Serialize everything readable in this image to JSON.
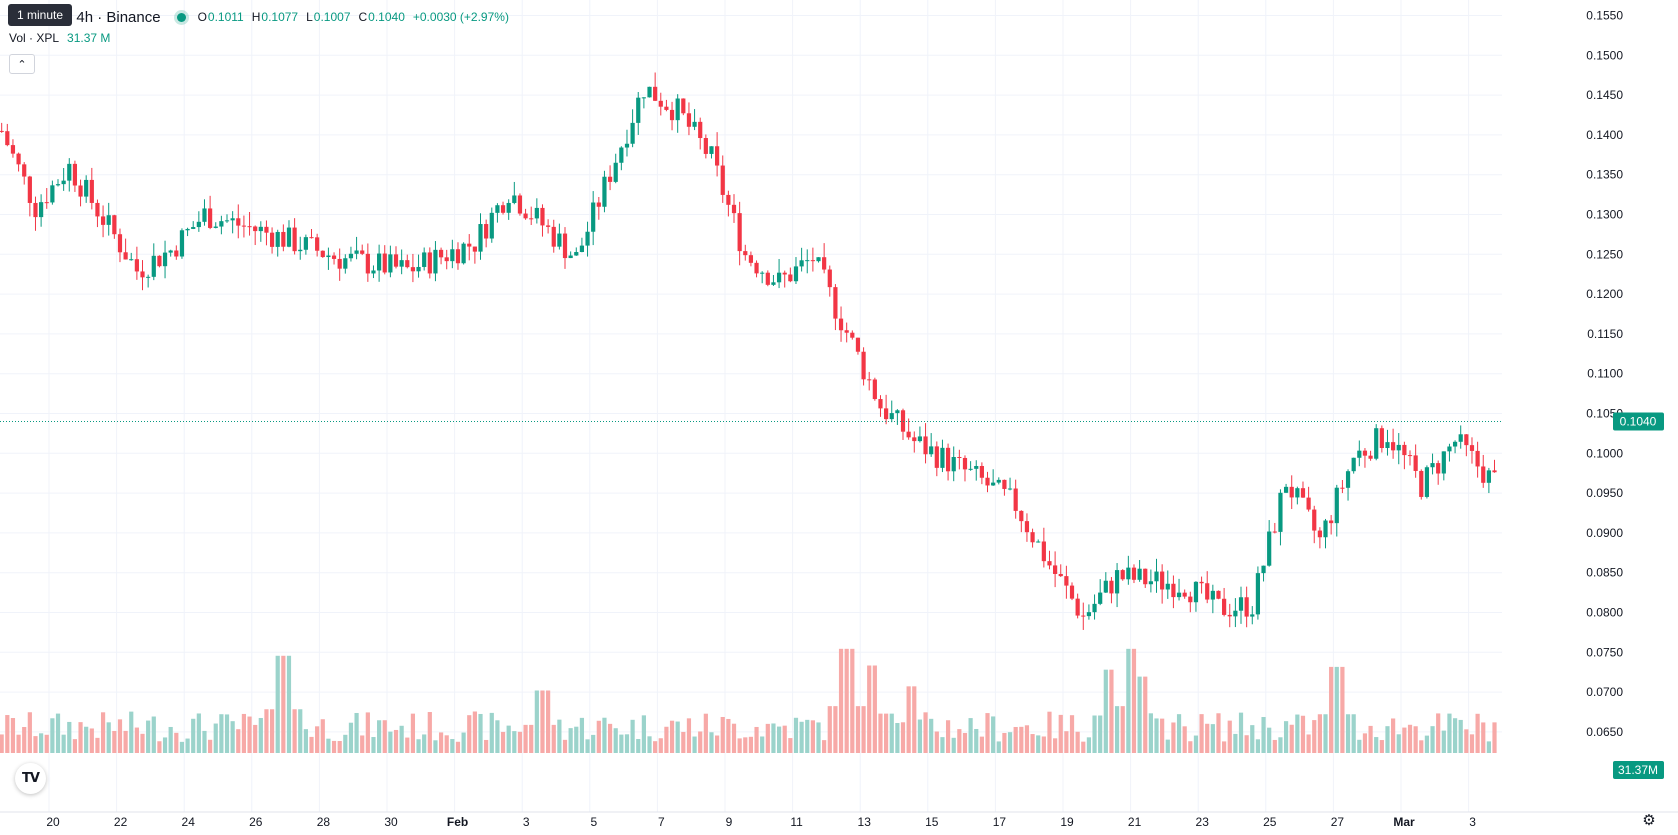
{
  "legend": {
    "symbol_text": "etherUS · 4h · Binance",
    "tooltip": "1 minute",
    "ohlc": {
      "o_label": "O",
      "o_value": "0.1011",
      "h_label": "H",
      "h_value": "0.1077",
      "l_label": "L",
      "l_value": "0.1007",
      "c_label": "C",
      "c_value": "0.1040",
      "change": "+0.0030 (+2.97%)"
    },
    "volume_label": "Vol · XPL",
    "volume_value": "31.37 M",
    "collapse_icon": "chevron-up-icon"
  },
  "price_badge": "0.1040",
  "volume_badge": "31.37M",
  "colors": {
    "up": "#089981",
    "down": "#f23645",
    "vol_up": "#9bd3cb",
    "vol_down": "#f7a9a7"
  },
  "chart_data": {
    "type": "candlestick",
    "timeframe": "4h",
    "x_tick_labels": [
      "20",
      "22",
      "24",
      "26",
      "28",
      "30",
      "Feb",
      "3",
      "5",
      "7",
      "9",
      "11",
      "13",
      "15",
      "17",
      "19",
      "21",
      "23",
      "25",
      "27",
      "Mar",
      "3"
    ],
    "y_tick_labels": [
      "0.1550",
      "0.1500",
      "0.1450",
      "0.1400",
      "0.1350",
      "0.1300",
      "0.1250",
      "0.1200",
      "0.1150",
      "0.1100",
      "0.1050",
      "0.1000",
      "0.0950",
      "0.0900",
      "0.0850",
      "0.0800",
      "0.0750",
      "0.0700",
      "0.0650"
    ],
    "ylim": [
      0.0625,
      0.1575
    ],
    "last_price": 0.104,
    "close_path": [
      [
        0,
        0.1405
      ],
      [
        1,
        0.131
      ],
      [
        2,
        0.136
      ],
      [
        4,
        0.123
      ],
      [
        5,
        0.1255
      ],
      [
        6,
        0.13
      ],
      [
        8,
        0.1275
      ],
      [
        10,
        0.1245
      ],
      [
        12,
        0.123
      ],
      [
        14,
        0.1265
      ],
      [
        15,
        0.133
      ],
      [
        17,
        0.1245
      ],
      [
        19,
        0.146
      ],
      [
        20,
        0.143
      ],
      [
        21,
        0.137
      ],
      [
        22,
        0.125
      ],
      [
        23,
        0.1215
      ],
      [
        24,
        0.1245
      ],
      [
        26,
        0.106
      ],
      [
        27,
        0.1015
      ],
      [
        29,
        0.0965
      ],
      [
        30,
        0.0935
      ],
      [
        31,
        0.086
      ],
      [
        32,
        0.0795
      ],
      [
        33,
        0.0845
      ],
      [
        35,
        0.0835
      ],
      [
        36,
        0.0805
      ],
      [
        37,
        0.081
      ],
      [
        38,
        0.0965
      ],
      [
        39,
        0.089
      ],
      [
        40,
        0.0995
      ],
      [
        41,
        0.1025
      ],
      [
        42,
        0.096
      ],
      [
        43,
        0.1015
      ],
      [
        44,
        0.097
      ],
      [
        45,
        0.0945
      ],
      [
        46,
        0.0915
      ],
      [
        47,
        0.0935
      ],
      [
        48,
        0.094
      ],
      [
        49,
        0.0995
      ],
      [
        50,
        0.0935
      ],
      [
        51,
        0.0895
      ],
      [
        52,
        0.084
      ],
      [
        53,
        0.0865
      ],
      [
        54,
        0.0865
      ],
      [
        55,
        0.087
      ],
      [
        56,
        0.109
      ],
      [
        57,
        0.1025
      ],
      [
        58,
        0.097
      ],
      [
        59,
        0.0965
      ],
      [
        60,
        0.092
      ],
      [
        61,
        0.0885
      ],
      [
        62,
        0.0935
      ],
      [
        63,
        0.1015
      ],
      [
        64,
        0.0995
      ],
      [
        65,
        0.0965
      ],
      [
        66,
        0.104
      ]
    ],
    "volume_ylim": [
      0,
      90
    ],
    "volume_spikes": [
      [
        6.95,
        70
      ],
      [
        14.6,
        45
      ],
      [
        23.6,
        75
      ],
      [
        24.4,
        63
      ],
      [
        25.5,
        48
      ],
      [
        31.4,
        60
      ],
      [
        32.0,
        75
      ],
      [
        32.4,
        55
      ],
      [
        38.1,
        62
      ],
      [
        56.3,
        73
      ],
      [
        57.0,
        38
      ]
    ]
  }
}
